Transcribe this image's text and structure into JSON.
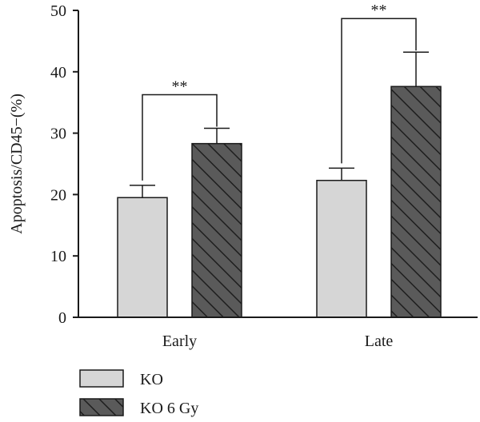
{
  "chart_data": {
    "type": "bar",
    "title": "",
    "xlabel": "",
    "ylabel": "Apoptosis/CD45−(%)",
    "ylim": [
      0,
      50
    ],
    "yticks": [
      0,
      10,
      20,
      30,
      40,
      50
    ],
    "categories": [
      "Early",
      "Late"
    ],
    "series": [
      {
        "name": "KO",
        "values": [
          19.5,
          22.3
        ],
        "errors": [
          2.0,
          2.0
        ],
        "color": "#d6d6d6",
        "pattern": "solid"
      },
      {
        "name": "KO 6 Gy",
        "values": [
          28.3,
          37.6
        ],
        "errors": [
          2.5,
          5.6
        ],
        "color": "#5a5a5a",
        "pattern": "diagonal-hatch"
      }
    ],
    "annotations": [
      {
        "category": "Early",
        "label": "**"
      },
      {
        "category": "Late",
        "label": "**"
      }
    ],
    "legend_position": "bottom-left",
    "grid": false
  }
}
